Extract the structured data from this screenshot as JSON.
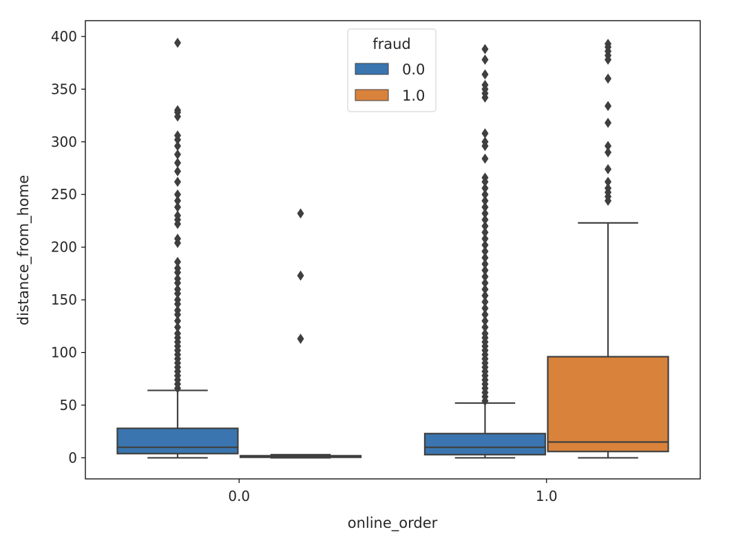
{
  "chart_data": {
    "type": "box",
    "title": "",
    "xlabel": "online_order",
    "ylabel": "distance_from_home",
    "categories": [
      "0.0",
      "1.0"
    ],
    "ylim": [
      -20,
      415
    ],
    "yticks": [
      0,
      50,
      100,
      150,
      200,
      250,
      300,
      350,
      400
    ],
    "grid": false,
    "legend": {
      "title": "fraud",
      "placement": "top-center",
      "entries": [
        {
          "label": "0.0",
          "color": "#3a75af"
        },
        {
          "label": "1.0",
          "color": "#d8823c"
        }
      ]
    },
    "series": [
      {
        "name": "0.0",
        "color": "#3a75af",
        "boxes": [
          {
            "category": "0.0",
            "whisker_low": 0,
            "q1": 4,
            "median": 10,
            "q3": 28,
            "whisker_high": 64,
            "outliers": [
              66,
              70,
              74,
              78,
              82,
              86,
              90,
              94,
              98,
              102,
              106,
              110,
              114,
              118,
              124,
              130,
              136,
              140,
              146,
              150,
              156,
              160,
              166,
              170,
              176,
              180,
              186,
              204,
              208,
              222,
              226,
              230,
              238,
              244,
              250,
              262,
              272,
              280,
              288,
              296,
              302,
              306,
              324,
              328,
              330,
              394
            ]
          },
          {
            "category": "1.0",
            "whisker_low": 0,
            "q1": 3,
            "median": 10,
            "q3": 23,
            "whisker_high": 52,
            "outliers": [
              54,
              58,
              62,
              66,
              70,
              74,
              78,
              82,
              86,
              90,
              94,
              98,
              102,
              106,
              110,
              114,
              118,
              124,
              130,
              136,
              142,
              148,
              154,
              160,
              166,
              172,
              178,
              184,
              190,
              196,
              202,
              208,
              214,
              220,
              226,
              232,
              238,
              244,
              250,
              256,
              262,
              266,
              284,
              296,
              300,
              308,
              342,
              346,
              350,
              354,
              364,
              378,
              388
            ]
          }
        ]
      },
      {
        "name": "1.0",
        "color": "#d8823c",
        "boxes": [
          {
            "category": "0.0",
            "whisker_low": 0,
            "q1": 0.5,
            "median": 1,
            "q3": 2,
            "whisker_high": 3,
            "outliers": [
              113,
              173,
              232
            ]
          },
          {
            "category": "1.0",
            "whisker_low": 0,
            "q1": 6,
            "median": 15,
            "q3": 96,
            "whisker_high": 223,
            "outliers": [
              244,
              248,
              252,
              256,
              262,
              274,
              290,
              296,
              318,
              334,
              360,
              378,
              382,
              386,
              390,
              393
            ]
          }
        ]
      }
    ]
  }
}
